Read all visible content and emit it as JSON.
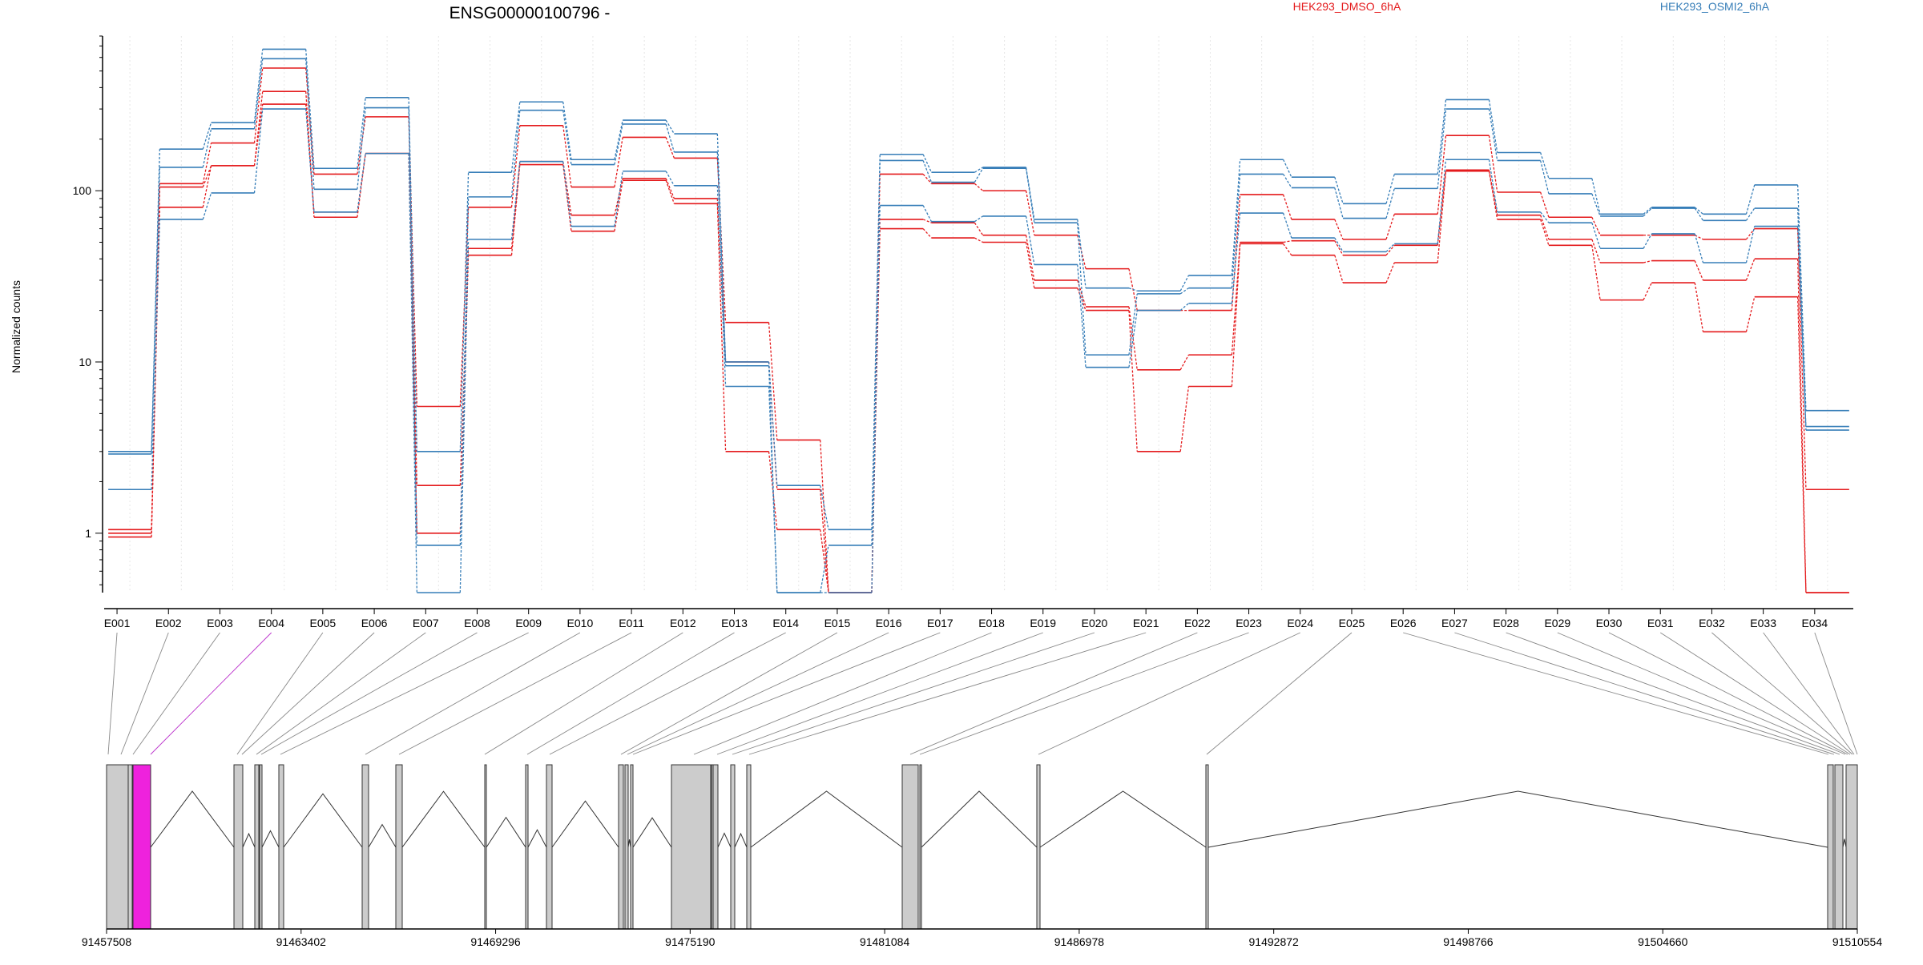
{
  "title": "ENSG00000100796 -",
  "legend": [
    {
      "name": "HEK293_DMSO_6hA",
      "color": "#e41a1c"
    },
    {
      "name": "HEK293_OSMI2_6hA",
      "color": "#377eb8"
    }
  ],
  "colors": {
    "highlight_exon": "#ee22dd",
    "exon_fill": "#cccccc",
    "connector": "#888888"
  },
  "chart_data": {
    "type": "line",
    "title": "ENSG00000100796 -",
    "ylabel": "Normalized counts",
    "xlabel": "",
    "yscale": "log",
    "ylim": [
      0.45,
      800
    ],
    "yticks": [
      1,
      10,
      100
    ],
    "ytick_labels": [
      "1",
      "10",
      "100"
    ],
    "grid": "vertical dotted",
    "legend_position": "top",
    "categories": [
      "E001",
      "E002",
      "E003",
      "E004",
      "E005",
      "E006",
      "E007",
      "E008",
      "E009",
      "E010",
      "E011",
      "E012",
      "E013",
      "E014",
      "E015",
      "E016",
      "E017",
      "E018",
      "E019",
      "E020",
      "E021",
      "E022",
      "E023",
      "E024",
      "E025",
      "E026",
      "E027",
      "E028",
      "E029",
      "E030",
      "E031",
      "E032",
      "E033",
      "E034"
    ],
    "series": [
      {
        "name": "HEK293_DMSO_6hA",
        "color": "#e41a1c",
        "values": [
          1.05,
          110,
          190,
          520,
          125,
          270,
          5.5,
          80,
          240,
          105,
          205,
          155,
          17,
          3.5,
          0.45,
          125,
          110,
          100,
          55,
          35,
          20,
          20,
          95,
          68,
          52,
          73,
          210,
          98,
          70,
          55,
          55,
          52,
          60,
          1.8
        ]
      },
      {
        "name": "HEK293_DMSO_6hA",
        "color": "#e41a1c",
        "values": [
          1.0,
          80,
          140,
          380,
          70,
          165,
          1.9,
          46,
          148,
          72,
          118,
          90,
          10,
          1.8,
          0.45,
          68,
          65,
          55,
          30,
          21,
          9,
          11,
          50,
          51,
          42,
          48,
          132,
          72,
          52,
          38,
          39,
          30,
          40,
          0.45
        ]
      },
      {
        "name": "HEK293_DMSO_6hA",
        "color": "#e41a1c",
        "values": [
          0.95,
          105,
          140,
          320,
          75,
          165,
          1.0,
          42,
          142,
          58,
          115,
          84,
          3.0,
          1.05,
          0.45,
          60,
          53,
          50,
          27,
          20,
          3.0,
          7.2,
          49,
          42,
          29,
          38,
          130,
          68,
          48,
          23,
          29,
          15,
          24,
          0.45
        ]
      },
      {
        "name": "HEK293_OSMI2_6hA",
        "color": "#377eb8",
        "values": [
          3.0,
          175,
          250,
          670,
          135,
          350,
          3.0,
          128,
          330,
          152,
          258,
          215,
          10,
          1.9,
          1.05,
          163,
          128,
          137,
          68,
          27,
          26,
          32,
          152,
          120,
          84,
          125,
          340,
          167,
          118,
          73,
          80,
          73,
          108,
          5.2
        ]
      },
      {
        "name": "HEK293_OSMI2_6hA",
        "color": "#377eb8",
        "values": [
          2.9,
          137,
          230,
          590,
          102,
          305,
          0.85,
          92,
          295,
          142,
          245,
          168,
          9.5,
          0.45,
          0.85,
          150,
          112,
          135,
          65,
          11,
          25,
          27,
          125,
          104,
          69,
          103,
          300,
          150,
          96,
          71,
          79,
          67,
          79,
          4.0
        ]
      },
      {
        "name": "HEK293_OSMI2_6hA",
        "color": "#377eb8",
        "values": [
          1.8,
          68,
          97,
          300,
          75,
          165,
          0.45,
          52,
          148,
          62,
          130,
          107,
          7.2,
          0.45,
          0.45,
          82,
          66,
          71,
          37,
          9.3,
          20,
          22,
          74,
          53,
          44,
          49,
          152,
          75,
          65,
          46,
          56,
          38,
          62,
          4.2
        ]
      }
    ]
  },
  "gene_model": {
    "genomic_ticks": [
      "91457508",
      "91463402",
      "91469296",
      "91475190",
      "91481084",
      "91486978",
      "91492872",
      "91498766",
      "91504660",
      "91510554"
    ]
  }
}
